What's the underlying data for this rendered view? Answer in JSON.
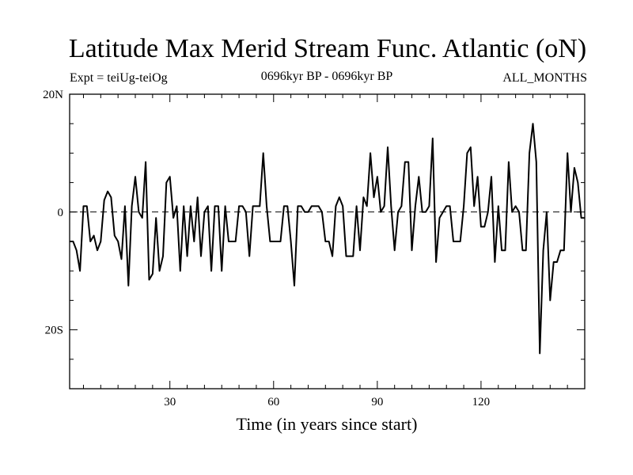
{
  "title": "Latitude Max Merid Stream Func. Atlantic (oN)",
  "experiment": "Expt = teiUg-teiOg",
  "period": "0696kyr BP - 0696kyr BP",
  "months": "ALL_MONTHS",
  "chart_data": {
    "type": "line",
    "title": "Latitude Max Merid Stream Func. Atlantic (oN)",
    "xlabel": "Time (in years since start)",
    "ylabel": "",
    "xlim": [
      1,
      150
    ],
    "ylim": [
      -30,
      20
    ],
    "x_ticks": [
      30,
      60,
      90,
      120
    ],
    "x_tick_labels": [
      "30",
      "60",
      "90",
      "120"
    ],
    "y_ticks": [
      20,
      0,
      -20
    ],
    "y_tick_labels": [
      "20N",
      "0",
      "20S"
    ],
    "zero_line": "dashed",
    "grid": false,
    "series": [
      {
        "x": [
          1,
          2,
          3,
          4,
          5,
          6,
          7,
          8,
          9,
          10,
          11,
          12,
          13,
          14,
          15,
          16,
          17,
          18,
          19,
          20,
          21,
          22,
          23,
          24,
          25,
          26,
          27,
          28,
          29,
          30,
          31,
          32,
          33,
          34,
          35,
          36,
          37,
          38,
          39,
          40,
          41,
          42,
          43,
          44,
          45,
          46,
          47,
          48,
          49,
          50,
          51,
          52,
          53,
          54,
          55,
          56,
          57,
          58,
          59,
          60,
          61,
          62,
          63,
          64,
          65,
          66,
          67,
          68,
          69,
          70,
          71,
          72,
          73,
          74,
          75,
          76,
          77,
          78,
          79,
          80,
          81,
          82,
          83,
          84,
          85,
          86,
          87,
          88,
          89,
          90,
          91,
          92,
          93,
          94,
          95,
          96,
          97,
          98,
          99,
          100,
          101,
          102,
          103,
          104,
          105,
          106,
          107,
          108,
          109,
          110,
          111,
          112,
          113,
          114,
          115,
          116,
          117,
          118,
          119,
          120,
          121,
          122,
          123,
          124,
          125,
          126,
          127,
          128,
          129,
          130,
          131,
          132,
          133,
          134,
          135,
          136,
          137,
          138,
          139,
          140,
          141,
          142,
          143,
          144,
          145,
          146,
          147,
          148,
          149,
          150
        ],
        "y": [
          -5,
          -5,
          -6.5,
          -10,
          1,
          1,
          -5,
          -4,
          -6.5,
          -5,
          2,
          3.5,
          2.5,
          -4,
          -5,
          -8,
          1,
          -12.5,
          1,
          6,
          0,
          -1,
          8.5,
          -11.5,
          -10.5,
          -1,
          -10,
          -7.5,
          5,
          6,
          -1,
          1,
          -10,
          1,
          -7.5,
          1,
          -5,
          2.5,
          -7.5,
          0,
          1,
          -10,
          1,
          1,
          -10,
          1,
          -5,
          -5,
          -5,
          1,
          1,
          0,
          -7.5,
          1,
          1,
          1,
          10,
          1,
          -5,
          -5,
          -5,
          -5,
          1,
          1,
          -5,
          -12.5,
          1,
          1,
          0,
          0,
          1,
          1,
          1,
          0,
          -5,
          -5,
          -7.5,
          1,
          2.5,
          1,
          -7.5,
          -7.5,
          -7.5,
          1,
          -6.5,
          2.5,
          1,
          10,
          2.5,
          6,
          0,
          1,
          11,
          1,
          -6.5,
          0,
          1,
          8.5,
          8.5,
          -6.5,
          1,
          6,
          0,
          0,
          1,
          12.5,
          -8.5,
          -1,
          0,
          1,
          1,
          -5,
          -5,
          -5,
          1,
          10,
          11,
          1,
          6,
          -2.5,
          -2.5,
          0,
          6,
          -8.5,
          1,
          -6.5,
          -6.5,
          8.5,
          0,
          1,
          0,
          -6.5,
          -6.5,
          10,
          15,
          8.5,
          -24,
          -6.5,
          0,
          -15,
          -8.5,
          -8.5,
          -6.5,
          -6.5,
          10,
          0,
          7.5,
          5,
          -1,
          -1
        ]
      }
    ]
  }
}
